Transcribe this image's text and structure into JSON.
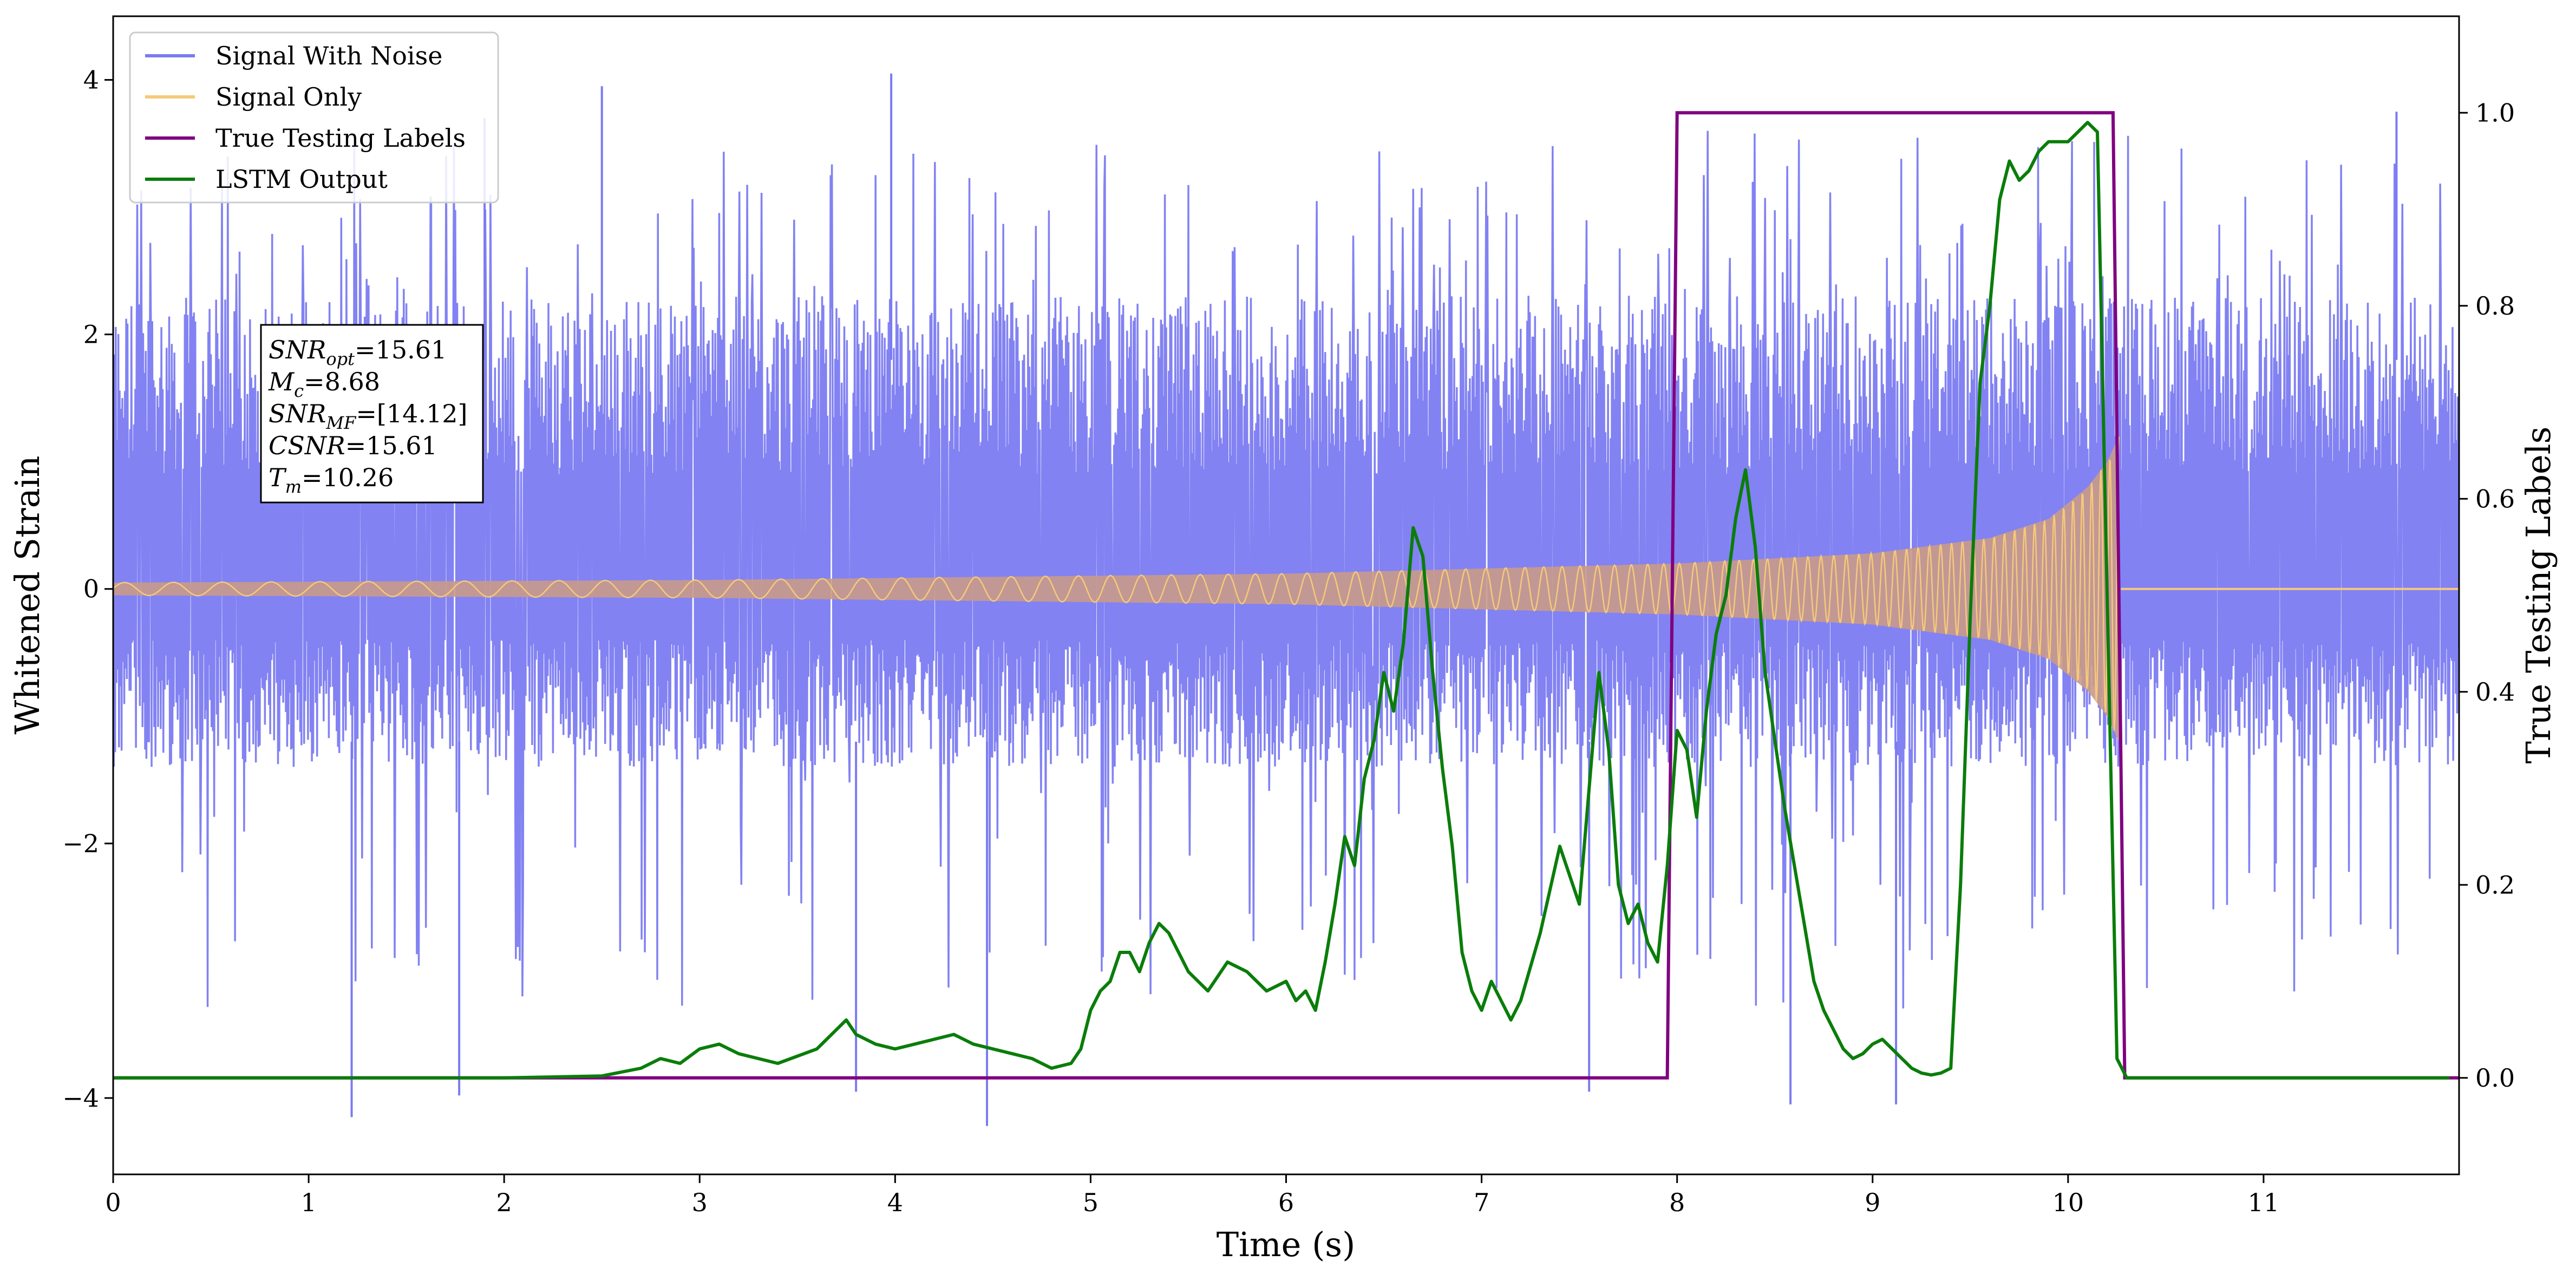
{
  "chart_data": {
    "type": "line",
    "xlabel": "Time (s)",
    "ylabel_left": "Whitened Strain",
    "ylabel_right": "True Testing Labels",
    "xlim": [
      0,
      12
    ],
    "ylim_left": [
      -4.6,
      4.5
    ],
    "ylim_right": [
      -0.1,
      1.1
    ],
    "x_ticks": [
      0,
      1,
      2,
      3,
      4,
      5,
      6,
      7,
      8,
      9,
      10,
      11
    ],
    "y_ticks_left": [
      -4,
      -2,
      0,
      2,
      4
    ],
    "y_ticks_right": [
      0.0,
      0.2,
      0.4,
      0.6,
      0.8,
      1.0
    ],
    "grid": false,
    "legend_position": "top-left",
    "legend": [
      {
        "label": "Signal With Noise",
        "color": "#7b7bf2"
      },
      {
        "label": "Signal Only",
        "color": "#f6c97a"
      },
      {
        "label": "True Testing Labels",
        "color": "#800080"
      },
      {
        "label": "LSTM Output",
        "color": "#0a7d0a"
      }
    ],
    "annotation": {
      "lines": [
        {
          "sym": "SNR",
          "sub": "opt",
          "val": "=15.61"
        },
        {
          "sym": "M",
          "sub": "c",
          "val": "=8.68"
        },
        {
          "sym": "SNR",
          "sub": "MF",
          "val": "=[14.12]"
        },
        {
          "sym": "CSNR",
          "sub": "",
          "val": "=15.61"
        },
        {
          "sym": "T",
          "sub": "m",
          "val": "=10.26"
        }
      ]
    },
    "noise": {
      "series": "Signal With Noise",
      "color": "#7b7bf2",
      "x_range": [
        0,
        12
      ],
      "typical_range": [
        -1.4,
        2.3
      ],
      "max": 4.0,
      "min": -4.2,
      "notable_spikes": [
        {
          "x": 1.22,
          "y": -4.15
        },
        {
          "x": 4.47,
          "y": -4.22
        },
        {
          "x": 3.8,
          "y": -3.95
        },
        {
          "x": 8.58,
          "y": -4.05
        },
        {
          "x": 9.12,
          "y": -4.05
        },
        {
          "x": 7.55,
          "y": -3.95
        },
        {
          "x": 1.77,
          "y": -3.98
        },
        {
          "x": 3.98,
          "y": 4.05
        },
        {
          "x": 2.5,
          "y": 3.95
        },
        {
          "x": 11.68,
          "y": 3.75
        },
        {
          "x": 1.9,
          "y": 3.7
        }
      ]
    },
    "signal_only": {
      "series": "Signal Only",
      "color": "#f6c97a",
      "envelope": [
        {
          "x": 0.0,
          "y": 0.05
        },
        {
          "x": 3.0,
          "y": 0.07
        },
        {
          "x": 6.0,
          "y": 0.12
        },
        {
          "x": 8.0,
          "y": 0.2
        },
        {
          "x": 9.0,
          "y": 0.28
        },
        {
          "x": 9.6,
          "y": 0.4
        },
        {
          "x": 9.9,
          "y": 0.55
        },
        {
          "x": 10.1,
          "y": 0.8
        },
        {
          "x": 10.2,
          "y": 1.0
        },
        {
          "x": 10.26,
          "y": 1.2
        },
        {
          "x": 10.27,
          "y": 0.0
        },
        {
          "x": 12.0,
          "y": 0.0
        }
      ]
    },
    "true_labels": {
      "series": "True Testing Labels",
      "color": "#800080",
      "x": [
        0,
        7.95,
        8.0,
        10.23,
        10.29,
        12
      ],
      "y": [
        0,
        0,
        1,
        1,
        0,
        0
      ]
    },
    "lstm_output": {
      "series": "LSTM Output",
      "color": "#0a7d0a",
      "x": [
        0,
        1,
        2,
        2.5,
        2.7,
        2.8,
        2.9,
        3.0,
        3.1,
        3.2,
        3.4,
        3.6,
        3.7,
        3.75,
        3.8,
        3.9,
        4.0,
        4.1,
        4.3,
        4.4,
        4.5,
        4.6,
        4.7,
        4.8,
        4.9,
        4.95,
        5.0,
        5.05,
        5.1,
        5.15,
        5.2,
        5.25,
        5.3,
        5.35,
        5.4,
        5.5,
        5.6,
        5.7,
        5.8,
        5.9,
        6.0,
        6.05,
        6.1,
        6.15,
        6.2,
        6.25,
        6.3,
        6.35,
        6.4,
        6.45,
        6.5,
        6.55,
        6.6,
        6.65,
        6.7,
        6.75,
        6.8,
        6.85,
        6.9,
        6.95,
        7.0,
        7.05,
        7.1,
        7.15,
        7.2,
        7.3,
        7.4,
        7.5,
        7.55,
        7.6,
        7.65,
        7.7,
        7.75,
        7.8,
        7.85,
        7.9,
        7.95,
        8.0,
        8.05,
        8.1,
        8.15,
        8.2,
        8.25,
        8.3,
        8.35,
        8.4,
        8.45,
        8.5,
        8.55,
        8.6,
        8.65,
        8.7,
        8.75,
        8.8,
        8.85,
        8.9,
        8.95,
        9.0,
        9.05,
        9.1,
        9.15,
        9.2,
        9.25,
        9.3,
        9.35,
        9.4,
        9.45,
        9.5,
        9.55,
        9.6,
        9.65,
        9.7,
        9.75,
        9.8,
        9.85,
        9.9,
        9.95,
        10.0,
        10.05,
        10.1,
        10.15,
        10.2,
        10.25,
        10.3,
        10.35,
        11,
        11.95
      ],
      "y": [
        0.0,
        0.0,
        0.0,
        0.002,
        0.01,
        0.02,
        0.015,
        0.03,
        0.035,
        0.025,
        0.015,
        0.03,
        0.05,
        0.06,
        0.045,
        0.035,
        0.03,
        0.035,
        0.045,
        0.035,
        0.03,
        0.025,
        0.02,
        0.01,
        0.015,
        0.03,
        0.07,
        0.09,
        0.1,
        0.13,
        0.13,
        0.11,
        0.14,
        0.16,
        0.15,
        0.11,
        0.09,
        0.12,
        0.11,
        0.09,
        0.1,
        0.08,
        0.09,
        0.07,
        0.12,
        0.18,
        0.25,
        0.22,
        0.31,
        0.35,
        0.42,
        0.38,
        0.45,
        0.57,
        0.54,
        0.42,
        0.32,
        0.24,
        0.13,
        0.09,
        0.07,
        0.1,
        0.08,
        0.06,
        0.08,
        0.15,
        0.24,
        0.18,
        0.3,
        0.42,
        0.34,
        0.2,
        0.16,
        0.18,
        0.14,
        0.12,
        0.22,
        0.36,
        0.34,
        0.27,
        0.38,
        0.46,
        0.5,
        0.58,
        0.63,
        0.55,
        0.42,
        0.35,
        0.28,
        0.22,
        0.16,
        0.1,
        0.07,
        0.05,
        0.03,
        0.02,
        0.025,
        0.035,
        0.04,
        0.03,
        0.02,
        0.01,
        0.005,
        0.003,
        0.005,
        0.01,
        0.2,
        0.48,
        0.72,
        0.8,
        0.91,
        0.95,
        0.93,
        0.94,
        0.96,
        0.97,
        0.97,
        0.97,
        0.98,
        0.99,
        0.98,
        0.5,
        0.02,
        0.0,
        0.0,
        0.0,
        0.0
      ]
    }
  }
}
